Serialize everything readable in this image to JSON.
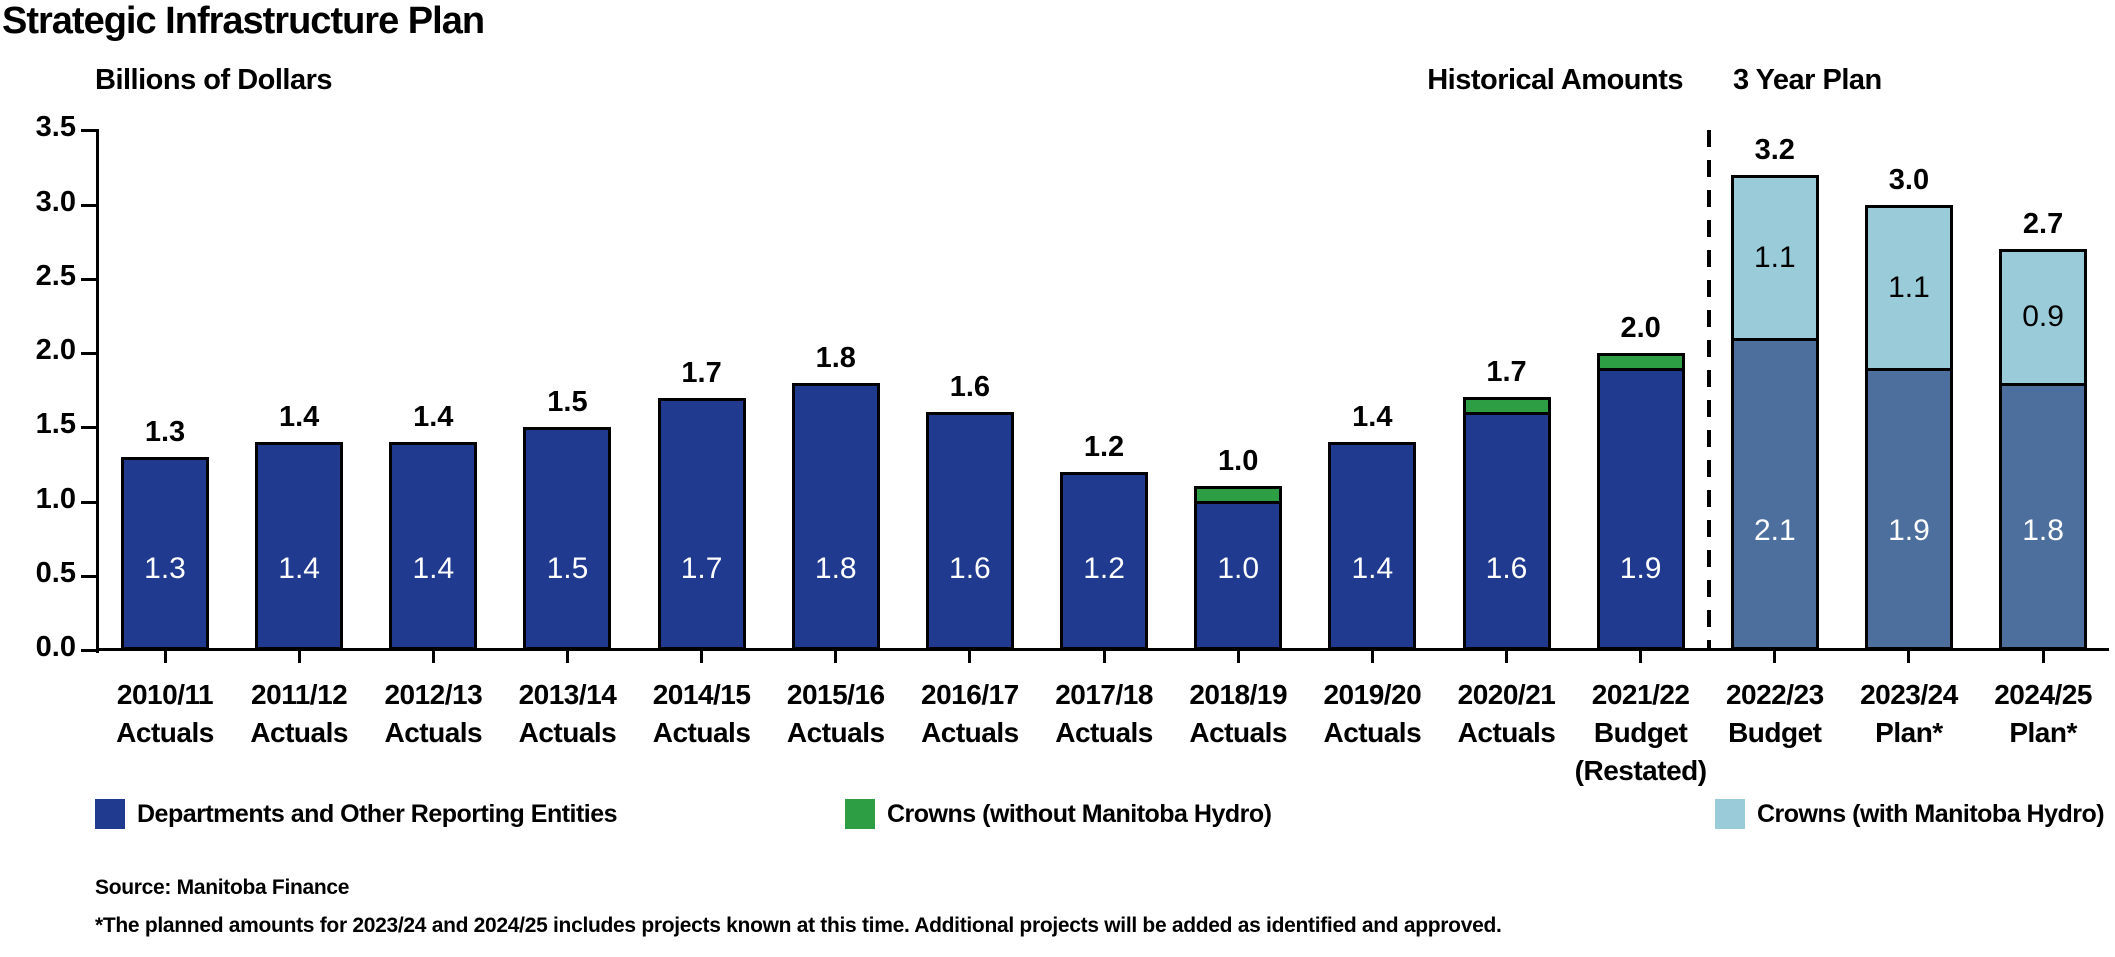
{
  "title": "Strategic Infrastructure Plan",
  "axis_title": "Billions of Dollars",
  "section_labels": {
    "historical": "Historical Amounts",
    "plan": "3 Year Plan"
  },
  "y_axis": {
    "ticks": [
      "3.5",
      "3.0",
      "2.5",
      "2.0",
      "1.5",
      "1.0",
      "0.5",
      "0.0"
    ],
    "min": 0.0,
    "max": 3.5,
    "step": 0.5
  },
  "colors": {
    "departments_historical": "#1F3A8F",
    "departments_plan": "#4D6F9E",
    "crowns_without_hydro": "#2E9E44",
    "crowns_with_hydro": "#9ACBD8",
    "axis": "#000000",
    "background": "#FFFFFF"
  },
  "legend": [
    {
      "label": "Departments and Other Reporting Entities",
      "color": "#1F3A8F"
    },
    {
      "label": "Crowns (without Manitoba Hydro)",
      "color": "#2E9E44"
    },
    {
      "label": "Crowns (with Manitoba Hydro)",
      "color": "#9ACBD8"
    }
  ],
  "source": "Source: Manitoba Finance",
  "footnote": "*The planned amounts for 2023/24 and 2024/25 includes projects known at this time. Additional projects will be added as identified and approved.",
  "chart_data": {
    "type": "bar",
    "stacked": true,
    "title": "Strategic Infrastructure Plan",
    "ylabel": "Billions of Dollars",
    "ylim": [
      0,
      3.5
    ],
    "grid": false,
    "legend_position": "bottom",
    "categories": [
      "2010/11 Actuals",
      "2011/12 Actuals",
      "2012/13 Actuals",
      "2013/14 Actuals",
      "2014/15 Actuals",
      "2015/16 Actuals",
      "2016/17 Actuals",
      "2017/18 Actuals",
      "2018/19 Actuals",
      "2019/20 Actuals",
      "2020/21 Actuals",
      "2021/22 Budget (Restated)",
      "2022/23 Budget",
      "2023/24 Plan*",
      "2024/25 Plan*"
    ],
    "series": [
      {
        "name": "Departments and Other Reporting Entities",
        "values": [
          1.3,
          1.4,
          1.4,
          1.5,
          1.7,
          1.8,
          1.6,
          1.2,
          1.0,
          1.4,
          1.6,
          1.9,
          2.1,
          1.9,
          1.8
        ]
      },
      {
        "name": "Crowns (without Manitoba Hydro)",
        "values": [
          0,
          0,
          0,
          0,
          0,
          0,
          0,
          0,
          0.1,
          0,
          0.1,
          0.1,
          0,
          0,
          0
        ]
      },
      {
        "name": "Crowns (with Manitoba Hydro)",
        "values": [
          0,
          0,
          0,
          0,
          0,
          0,
          0,
          0,
          0,
          0,
          0,
          0,
          1.1,
          1.1,
          0.9
        ]
      }
    ],
    "total_labels_as_printed": [
      "1.3",
      "1.4",
      "1.4",
      "1.5",
      "1.7",
      "1.8",
      "1.6",
      "1.2",
      "1.0",
      "1.4",
      "1.7",
      "2.0",
      "3.2",
      "3.0",
      "2.7"
    ],
    "annotations": [
      "Historical Amounts (2010/11 through 2021/22)",
      "3 Year Plan (2022/23 through 2024/25, right of dashed divider)"
    ]
  },
  "bars": [
    {
      "lines": [
        "2010/11",
        "Actuals"
      ],
      "plan": false,
      "total_label": "1.3",
      "segments": [
        {
          "name": "departments",
          "value": 1.3,
          "color": "#1F3A8F",
          "label": "1.3",
          "label_color": "#FFFFFF",
          "label_pos": "bottom"
        }
      ]
    },
    {
      "lines": [
        "2011/12",
        "Actuals"
      ],
      "plan": false,
      "total_label": "1.4",
      "segments": [
        {
          "name": "departments",
          "value": 1.4,
          "color": "#1F3A8F",
          "label": "1.4",
          "label_color": "#FFFFFF",
          "label_pos": "bottom"
        }
      ]
    },
    {
      "lines": [
        "2012/13",
        "Actuals"
      ],
      "plan": false,
      "total_label": "1.4",
      "segments": [
        {
          "name": "departments",
          "value": 1.4,
          "color": "#1F3A8F",
          "label": "1.4",
          "label_color": "#FFFFFF",
          "label_pos": "bottom"
        }
      ]
    },
    {
      "lines": [
        "2013/14",
        "Actuals"
      ],
      "plan": false,
      "total_label": "1.5",
      "segments": [
        {
          "name": "departments",
          "value": 1.5,
          "color": "#1F3A8F",
          "label": "1.5",
          "label_color": "#FFFFFF",
          "label_pos": "bottom"
        }
      ]
    },
    {
      "lines": [
        "2014/15",
        "Actuals"
      ],
      "plan": false,
      "total_label": "1.7",
      "segments": [
        {
          "name": "departments",
          "value": 1.7,
          "color": "#1F3A8F",
          "label": "1.7",
          "label_color": "#FFFFFF",
          "label_pos": "bottom"
        }
      ]
    },
    {
      "lines": [
        "2015/16",
        "Actuals"
      ],
      "plan": false,
      "total_label": "1.8",
      "segments": [
        {
          "name": "departments",
          "value": 1.8,
          "color": "#1F3A8F",
          "label": "1.8",
          "label_color": "#FFFFFF",
          "label_pos": "bottom"
        }
      ]
    },
    {
      "lines": [
        "2016/17",
        "Actuals"
      ],
      "plan": false,
      "total_label": "1.6",
      "segments": [
        {
          "name": "departments",
          "value": 1.6,
          "color": "#1F3A8F",
          "label": "1.6",
          "label_color": "#FFFFFF",
          "label_pos": "bottom"
        }
      ]
    },
    {
      "lines": [
        "2017/18",
        "Actuals"
      ],
      "plan": false,
      "total_label": "1.2",
      "segments": [
        {
          "name": "departments",
          "value": 1.2,
          "color": "#1F3A8F",
          "label": "1.2",
          "label_color": "#FFFFFF",
          "label_pos": "bottom"
        }
      ]
    },
    {
      "lines": [
        "2018/19",
        "Actuals"
      ],
      "plan": false,
      "total_label": "1.0",
      "segments": [
        {
          "name": "departments",
          "value": 1.0,
          "color": "#1F3A8F",
          "label": "1.0",
          "label_color": "#FFFFFF",
          "label_pos": "bottom"
        },
        {
          "name": "crowns-without-hydro",
          "value": 0.1,
          "color": "#2E9E44"
        }
      ]
    },
    {
      "lines": [
        "2019/20",
        "Actuals"
      ],
      "plan": false,
      "total_label": "1.4",
      "segments": [
        {
          "name": "departments",
          "value": 1.4,
          "color": "#1F3A8F",
          "label": "1.4",
          "label_color": "#FFFFFF",
          "label_pos": "bottom"
        }
      ]
    },
    {
      "lines": [
        "2020/21",
        "Actuals"
      ],
      "plan": false,
      "total_label": "1.7",
      "segments": [
        {
          "name": "departments",
          "value": 1.6,
          "color": "#1F3A8F",
          "label": "1.6",
          "label_color": "#FFFFFF",
          "label_pos": "bottom"
        },
        {
          "name": "crowns-without-hydro",
          "value": 0.1,
          "color": "#2E9E44"
        }
      ]
    },
    {
      "lines": [
        "2021/22",
        "Budget",
        "(Restated)"
      ],
      "plan": false,
      "total_label": "2.0",
      "segments": [
        {
          "name": "departments",
          "value": 1.9,
          "color": "#1F3A8F",
          "label": "1.9",
          "label_color": "#FFFFFF",
          "label_pos": "bottom"
        },
        {
          "name": "crowns-without-hydro",
          "value": 0.1,
          "color": "#2E9E44"
        }
      ]
    },
    {
      "lines": [
        "2022/23",
        "Budget"
      ],
      "plan": true,
      "total_label": "3.2",
      "segments": [
        {
          "name": "departments",
          "value": 2.1,
          "color": "#4D6F9E",
          "label": "2.1",
          "label_color": "#FFFFFF",
          "label_pos": "bottom"
        },
        {
          "name": "crowns-with-hydro",
          "value": 1.1,
          "color": "#9ACBD8",
          "label": "1.1",
          "label_color": "#000000",
          "label_pos": "middle"
        }
      ]
    },
    {
      "lines": [
        "2023/24",
        "Plan*"
      ],
      "plan": true,
      "total_label": "3.0",
      "segments": [
        {
          "name": "departments",
          "value": 1.9,
          "color": "#4D6F9E",
          "label": "1.9",
          "label_color": "#FFFFFF",
          "label_pos": "bottom"
        },
        {
          "name": "crowns-with-hydro",
          "value": 1.1,
          "color": "#9ACBD8",
          "label": "1.1",
          "label_color": "#000000",
          "label_pos": "middle"
        }
      ]
    },
    {
      "lines": [
        "2024/25",
        "Plan*"
      ],
      "plan": true,
      "total_label": "2.7",
      "segments": [
        {
          "name": "departments",
          "value": 1.8,
          "color": "#4D6F9E",
          "label": "1.8",
          "label_color": "#FFFFFF",
          "label_pos": "bottom"
        },
        {
          "name": "crowns-with-hydro",
          "value": 0.9,
          "color": "#9ACBD8",
          "label": "0.9",
          "label_color": "#000000",
          "label_pos": "middle"
        }
      ]
    }
  ]
}
